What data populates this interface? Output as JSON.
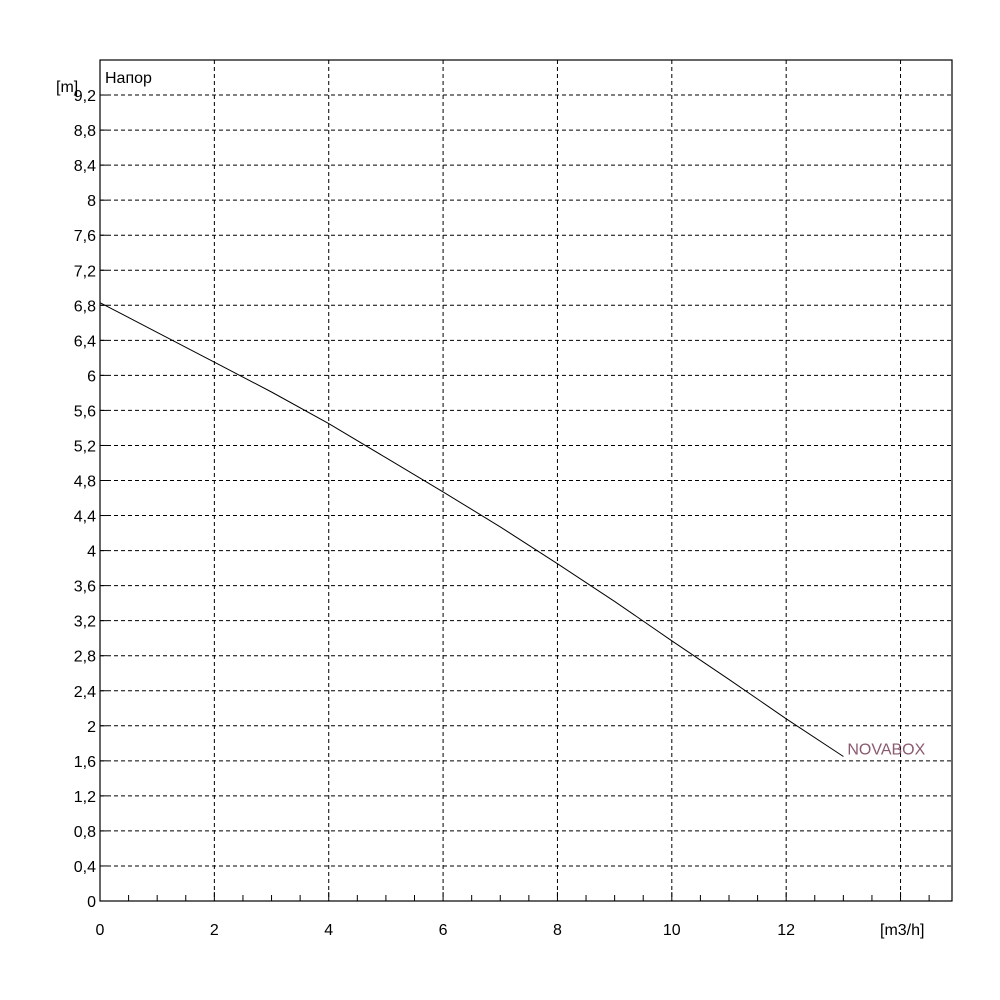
{
  "chart_data": {
    "type": "line",
    "title": "",
    "xlabel": "[m3/h]",
    "ylabel": "[m]",
    "y_title": "Напор",
    "xlim": [
      0,
      14.9
    ],
    "ylim": [
      0,
      9.6
    ],
    "x_ticks": [
      0,
      2,
      4,
      6,
      8,
      10,
      12
    ],
    "x_tick_labels": [
      "0",
      "2",
      "4",
      "6",
      "8",
      "10",
      "12"
    ],
    "x_minor_step": 0.5,
    "x_grid": [
      2,
      4,
      6,
      8,
      10,
      12,
      14
    ],
    "y_ticks": [
      0,
      0.4,
      0.8,
      1.2,
      1.6,
      2,
      2.4,
      2.8,
      3.2,
      3.6,
      4,
      4.4,
      4.8,
      5.2,
      5.6,
      6,
      6.4,
      6.8,
      7.2,
      7.6,
      8,
      8.4,
      8.8,
      9.2
    ],
    "y_tick_labels": [
      "0",
      "0,4",
      "0,8",
      "1,2",
      "1,6",
      "2",
      "2,4",
      "2,8",
      "3,2",
      "3,6",
      "4",
      "4,4",
      "4,8",
      "5,2",
      "5,6",
      "6",
      "6,4",
      "6,8",
      "7,2",
      "7,6",
      "8",
      "8,4",
      "8,8",
      "9,2"
    ],
    "grid": true,
    "series": [
      {
        "name": "NOVABOX",
        "color": "#000000",
        "label_color": "#8a5a6e",
        "x": [
          0,
          1,
          2,
          3,
          4,
          5,
          6,
          7,
          8,
          9,
          10,
          11,
          12,
          13
        ],
        "y": [
          6.83,
          6.49,
          6.15,
          5.81,
          5.45,
          5.06,
          4.67,
          4.27,
          3.85,
          3.42,
          2.97,
          2.53,
          2.08,
          1.65
        ]
      }
    ]
  }
}
